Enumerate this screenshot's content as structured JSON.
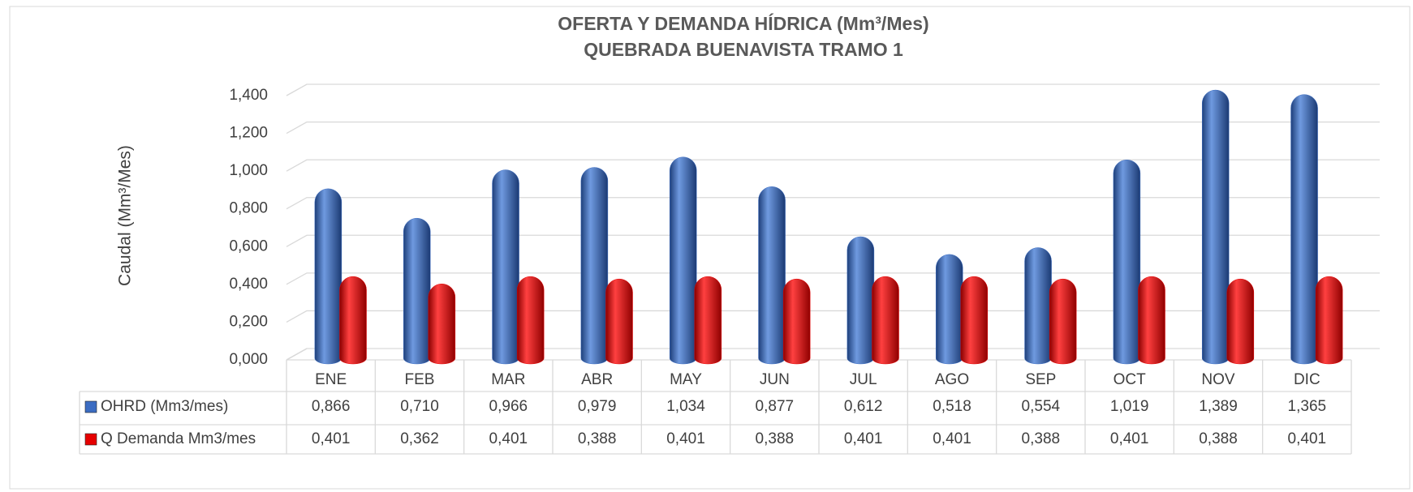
{
  "chart_data": {
    "type": "bar",
    "title": "OFERTA Y DEMANDA HÍDRICA (Mm³/Mes)",
    "subtitle": "QUEBRADA BUENAVISTA TRAMO 1",
    "y_label": "Caudal (Mm³/Mes)",
    "categories": [
      "ENE",
      "FEB",
      "MAR",
      "ABR",
      "MAY",
      "JUN",
      "JUL",
      "AGO",
      "SEP",
      "OCT",
      "NOV",
      "DIC"
    ],
    "series": [
      {
        "name": "OHRD (Mm3/mes)",
        "color": "#3b6cc2",
        "values": [
          0.866,
          0.71,
          0.966,
          0.979,
          1.034,
          0.877,
          0.612,
          0.518,
          0.554,
          1.019,
          1.389,
          1.365
        ],
        "value_labels": [
          "0,866",
          "0,710",
          "0,966",
          "0,979",
          "1,034",
          "0,877",
          "0,612",
          "0,518",
          "0,554",
          "1,019",
          "1,389",
          "1,365"
        ]
      },
      {
        "name": "Q Demanda Mm3/mes",
        "color": "#e60000",
        "values": [
          0.401,
          0.362,
          0.401,
          0.388,
          0.401,
          0.388,
          0.401,
          0.401,
          0.388,
          0.401,
          0.388,
          0.401
        ],
        "value_labels": [
          "0,401",
          "0,362",
          "0,401",
          "0,388",
          "0,401",
          "0,388",
          "0,401",
          "0,401",
          "0,388",
          "0,401",
          "0,388",
          "0,401"
        ]
      }
    ],
    "ylim": [
      0,
      1.4
    ],
    "yticks": [
      {
        "value": 0,
        "label": "0,000"
      },
      {
        "value": 0.2,
        "label": "0,200"
      },
      {
        "value": 0.4,
        "label": "0,400"
      },
      {
        "value": 0.6,
        "label": "0,600"
      },
      {
        "value": 0.8,
        "label": "0,800"
      },
      {
        "value": 1.0,
        "label": "1,000"
      },
      {
        "value": 1.2,
        "label": "1,200"
      },
      {
        "value": 1.4,
        "label": "1,400"
      }
    ],
    "grid": true
  }
}
